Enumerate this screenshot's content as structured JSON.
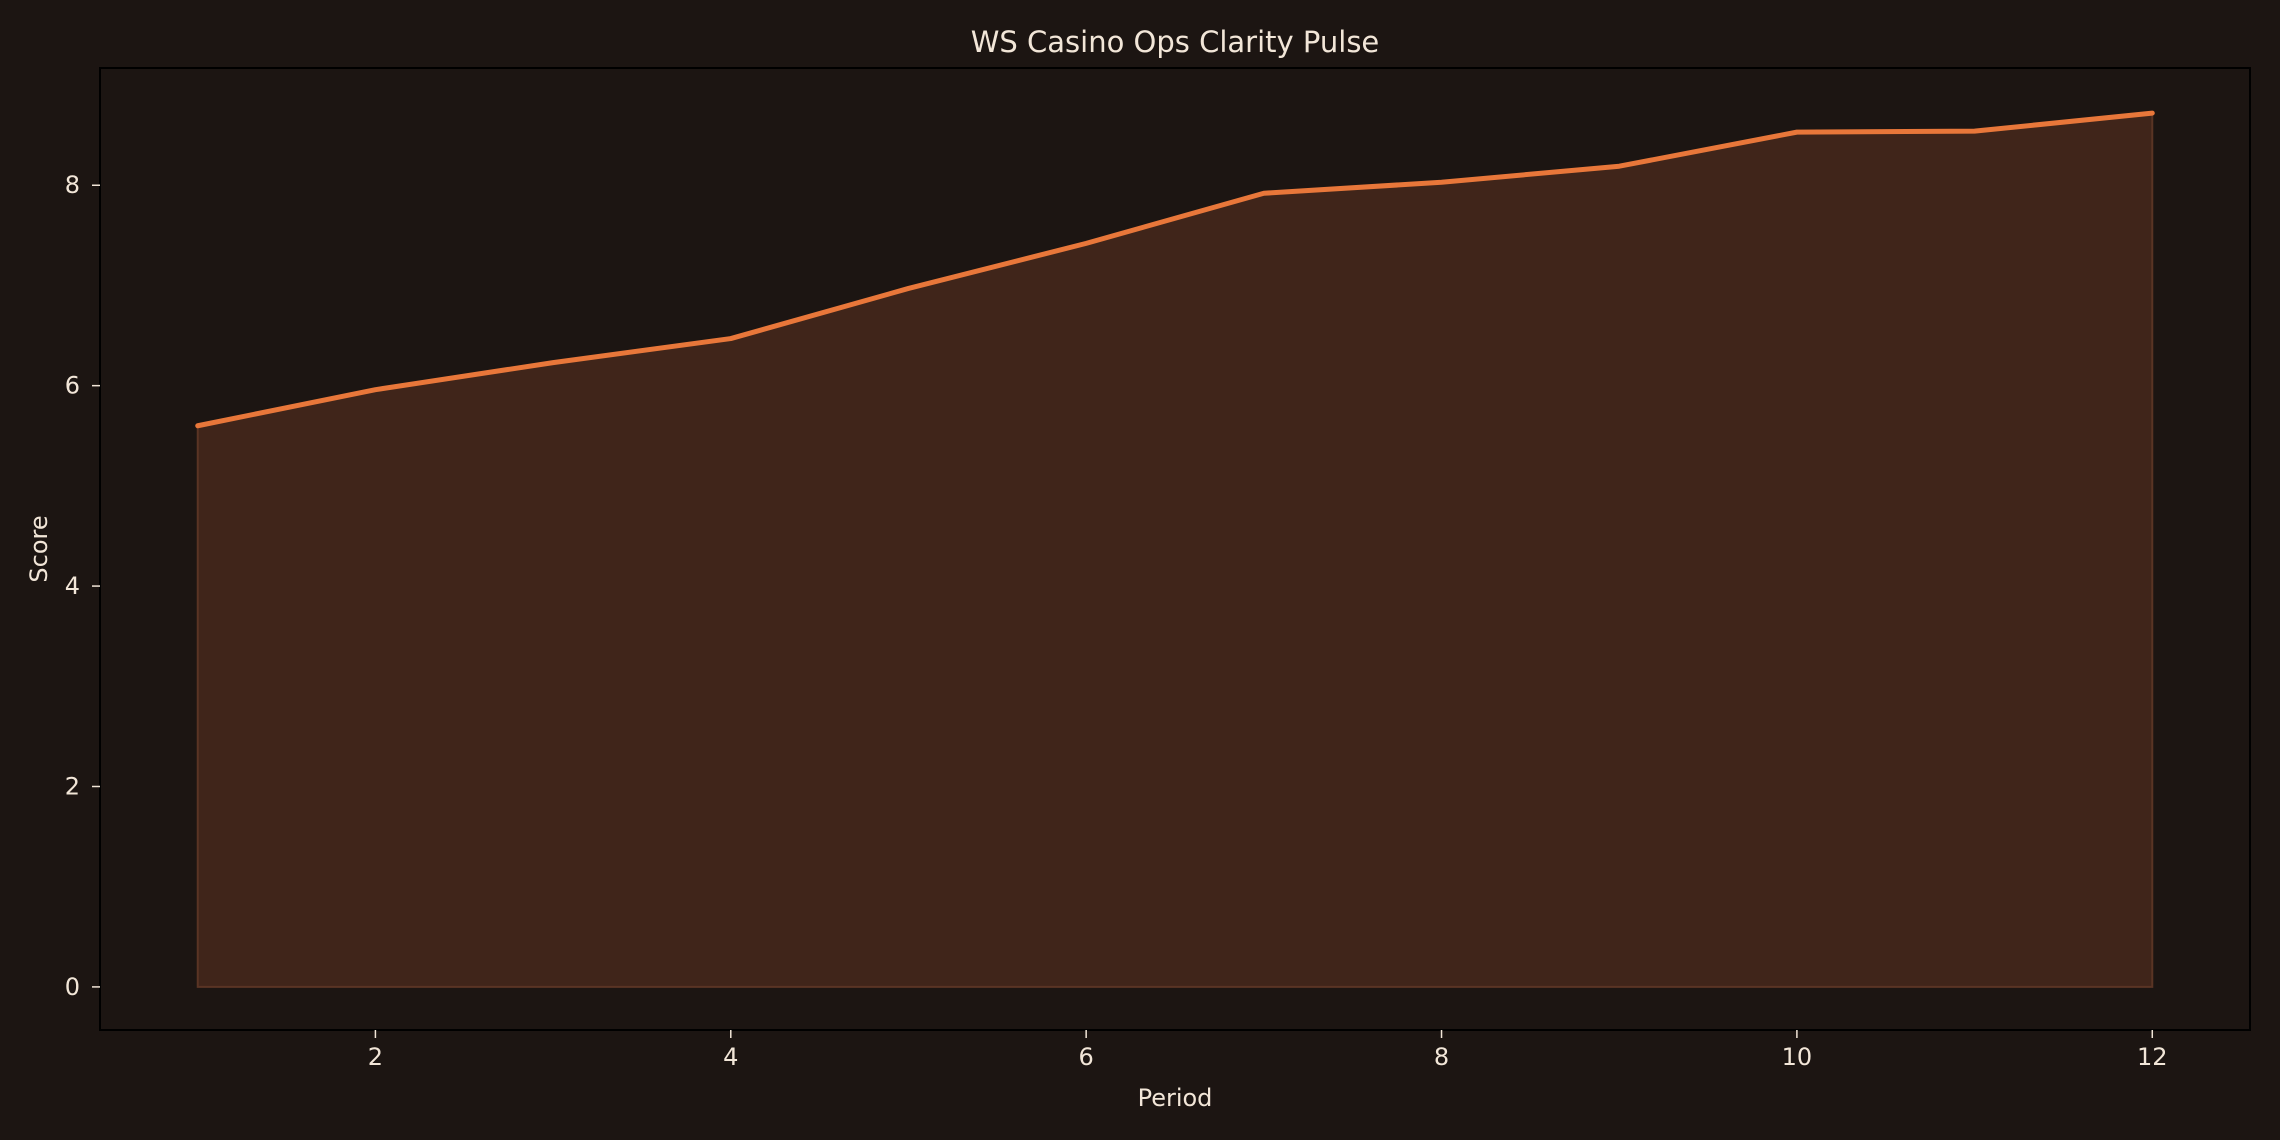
{
  "chart_data": {
    "type": "area",
    "title": "WS Casino Ops Clarity Pulse",
    "xlabel": "Period",
    "ylabel": "Score",
    "x": [
      1,
      2,
      3,
      4,
      5,
      6,
      7,
      8,
      9,
      10,
      11,
      12
    ],
    "values": [
      5.6,
      5.96,
      6.23,
      6.47,
      6.97,
      7.42,
      7.92,
      8.03,
      8.19,
      8.53,
      8.54,
      8.72
    ],
    "xlim": [
      0.45,
      12.55
    ],
    "ylim": [
      -0.43,
      9.17
    ],
    "xticks": [
      2,
      4,
      6,
      8,
      10,
      12
    ],
    "yticks": [
      0,
      2,
      4,
      6,
      8
    ],
    "grid": false,
    "legend": "none",
    "colors": {
      "background": "#1c1512",
      "plot_background": "#1c1512",
      "line": "#e8773a",
      "fill": "#40251a",
      "text": "#f2e6d8",
      "axes": "#000000"
    }
  }
}
